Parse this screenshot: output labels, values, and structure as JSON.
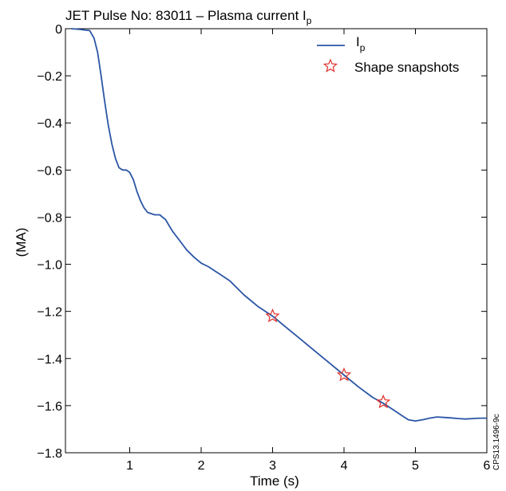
{
  "chart_data": {
    "type": "line",
    "title": "JET Pulse No: 83011 –  Plasma current I",
    "title_subscript": "p",
    "xlabel": "Time (s)",
    "ylabel": "(MA)",
    "xlim": [
      0.1,
      6
    ],
    "ylim": [
      -1.8,
      0
    ],
    "x_ticks": [
      1,
      2,
      3,
      4,
      5,
      6
    ],
    "x_tick_labels": [
      "1",
      "2",
      "3",
      "4",
      "5",
      "6"
    ],
    "y_ticks": [
      0,
      -0.2,
      -0.4,
      -0.6,
      -0.8,
      -1.0,
      -1.2,
      -1.4,
      -1.6,
      -1.8
    ],
    "y_tick_labels": [
      "0",
      "−0.2",
      "−0.4",
      "−0.6",
      "−0.8",
      "−1.0",
      "−1.2",
      "−1.4",
      "−1.6",
      "−1.8"
    ],
    "grid": false,
    "legend_position": "top-right",
    "series": [
      {
        "name": "I",
        "name_subscript": "p",
        "color": "#2b55a6",
        "style": "line",
        "x": [
          0.18,
          0.3,
          0.44,
          0.5,
          0.55,
          0.6,
          0.65,
          0.7,
          0.75,
          0.8,
          0.85,
          0.9,
          0.95,
          1.0,
          1.05,
          1.1,
          1.15,
          1.2,
          1.25,
          1.3,
          1.35,
          1.42,
          1.5,
          1.6,
          1.7,
          1.8,
          1.9,
          2.0,
          2.1,
          2.2,
          2.3,
          2.4,
          2.5,
          2.6,
          2.8,
          3.0,
          3.2,
          3.4,
          3.6,
          3.8,
          4.0,
          4.2,
          4.4,
          4.55,
          4.7,
          4.8,
          4.9,
          5.0,
          5.1,
          5.2,
          5.3,
          5.4,
          5.5,
          5.6,
          5.7,
          5.8,
          5.9,
          6.0
        ],
        "y": [
          0.0,
          -0.003,
          -0.008,
          -0.04,
          -0.1,
          -0.2,
          -0.31,
          -0.41,
          -0.49,
          -0.55,
          -0.59,
          -0.6,
          -0.6,
          -0.61,
          -0.64,
          -0.69,
          -0.73,
          -0.76,
          -0.78,
          -0.785,
          -0.79,
          -0.79,
          -0.81,
          -0.86,
          -0.9,
          -0.94,
          -0.97,
          -0.995,
          -1.01,
          -1.03,
          -1.05,
          -1.07,
          -1.1,
          -1.13,
          -1.18,
          -1.22,
          -1.27,
          -1.32,
          -1.37,
          -1.42,
          -1.47,
          -1.52,
          -1.565,
          -1.59,
          -1.62,
          -1.64,
          -1.66,
          -1.665,
          -1.66,
          -1.653,
          -1.648,
          -1.65,
          -1.652,
          -1.655,
          -1.657,
          -1.655,
          -1.653,
          -1.653
        ]
      },
      {
        "name": "Shape snapshots",
        "color": "#e0302a",
        "style": "star-marker",
        "x": [
          3.0,
          4.0,
          4.55
        ],
        "y": [
          -1.22,
          -1.47,
          -1.585
        ]
      }
    ],
    "annotation": "CPS13.1496-9c"
  }
}
